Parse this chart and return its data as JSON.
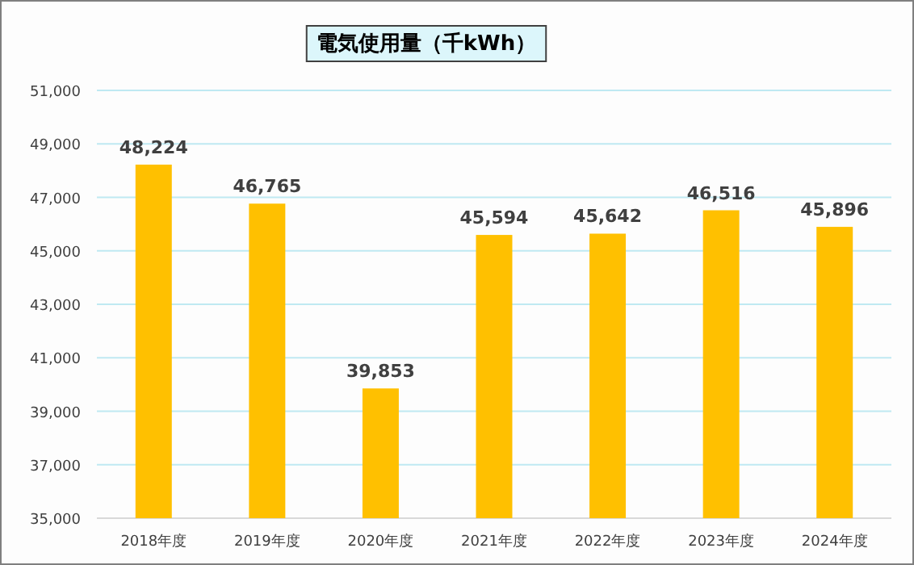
{
  "chart_data": {
    "type": "bar",
    "title": "電気使用量（千kWh）",
    "categories": [
      "2018年度",
      "2019年度",
      "2020年度",
      "2021年度",
      "2022年度",
      "2023年度",
      "2024年度"
    ],
    "values": [
      48224,
      46765,
      39853,
      45594,
      45642,
      46516,
      45896
    ],
    "value_labels": [
      "48,224",
      "46,765",
      "39,853",
      "45,594",
      "45,642",
      "46,516",
      "45,896"
    ],
    "color": "#ffc000",
    "ylim": [
      35000,
      51000
    ],
    "yticks": [
      {
        "value": 35000,
        "label": "35,000"
      },
      {
        "value": 37000,
        "label": "37,000"
      },
      {
        "value": 39000,
        "label": "39,000"
      },
      {
        "value": 41000,
        "label": "41,000"
      },
      {
        "value": 43000,
        "label": "43,000"
      },
      {
        "value": 45000,
        "label": "45,000"
      },
      {
        "value": 47000,
        "label": "47,000"
      },
      {
        "value": 49000,
        "label": "49,000"
      },
      {
        "value": 51000,
        "label": "51,000"
      }
    ],
    "grid": "y"
  }
}
